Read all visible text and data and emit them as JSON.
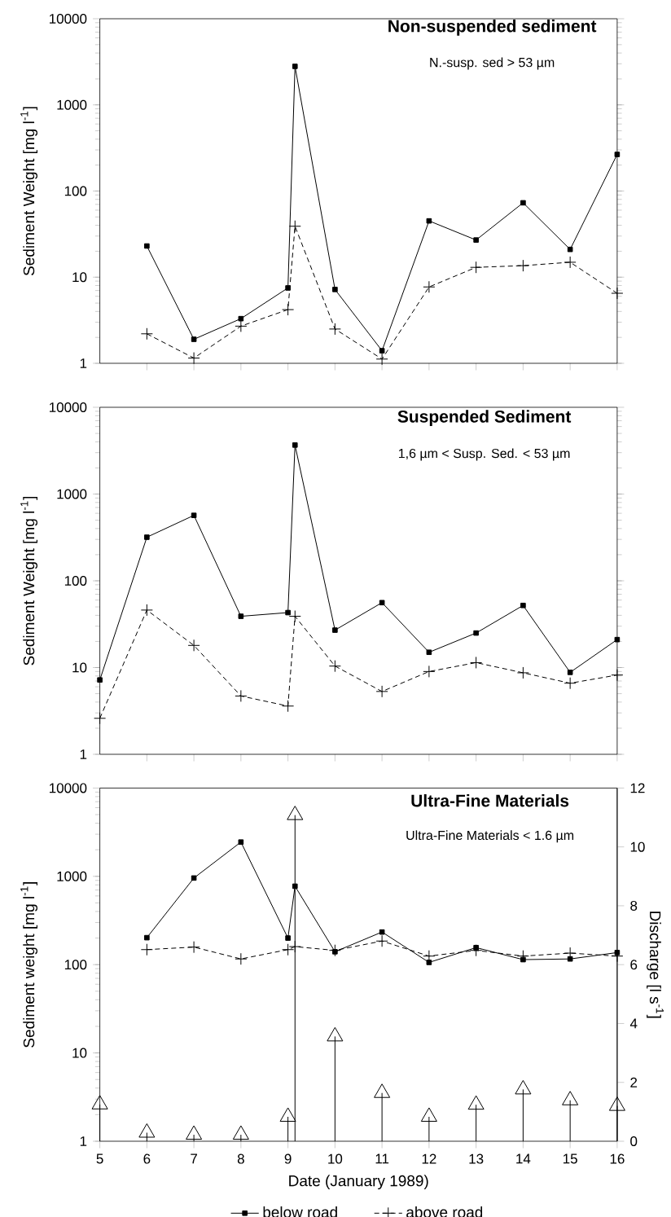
{
  "chart_data": [
    {
      "type": "line",
      "title": "Non-suspended sediment",
      "subtitle": "N.-susp. sed > 53 µm",
      "ylabel": "Sediment Weight [mg l$^{-1}$]",
      "x": [
        6,
        7,
        8,
        9,
        9.15,
        10,
        11,
        12,
        13,
        14,
        15,
        16
      ],
      "xlim": [
        5,
        16
      ],
      "xticks": [
        {
          "value": 6,
          "label": null
        },
        {
          "value": 7,
          "label": null
        },
        {
          "value": 8,
          "label": null
        },
        {
          "value": 9,
          "label": null
        },
        {
          "value": 10,
          "label": null
        },
        {
          "value": 11,
          "label": null
        },
        {
          "value": 12,
          "label": null
        },
        {
          "value": 13,
          "label": null
        },
        {
          "value": 14,
          "label": null
        },
        {
          "value": 15,
          "label": null
        },
        {
          "value": 16,
          "label": null
        }
      ],
      "ylim": [
        1,
        10000
      ],
      "yticks": [
        1,
        10,
        100,
        1000,
        10000
      ],
      "log": "y",
      "tick_labels": "y",
      "series": [
        {
          "color": "#000000",
          "marker": "square",
          "line_style": "solid",
          "values": [
            23,
            1.9,
            3.3,
            7.5,
            2800,
            7.2,
            1.4,
            45,
            27,
            73,
            21,
            266
          ]
        },
        {
          "color": "#000000",
          "marker": "cross",
          "line_style": "dashed",
          "values": [
            2.2,
            1.15,
            2.7,
            4.2,
            39,
            2.5,
            1.12,
            7.7,
            13,
            13.6,
            14.9,
            6.5
          ]
        }
      ]
    },
    {
      "type": "line",
      "title": "Suspended Sediment",
      "subtitle": "1,6 µm < Susp. Sed. < 53 µm",
      "ylabel": "Sediment Weight [mg l$^{-1}$]",
      "x": [
        5,
        6,
        7,
        8,
        9,
        9.15,
        10,
        11,
        12,
        13,
        14,
        15,
        16
      ],
      "xlim": [
        5,
        16
      ],
      "xticks": [
        {
          "value": 6,
          "label": null
        },
        {
          "value": 7,
          "label": null
        },
        {
          "value": 8,
          "label": null
        },
        {
          "value": 9,
          "label": null
        },
        {
          "value": 10,
          "label": null
        },
        {
          "value": 11,
          "label": null
        },
        {
          "value": 12,
          "label": null
        },
        {
          "value": 13,
          "label": null
        },
        {
          "value": 14,
          "label": null
        },
        {
          "value": 15,
          "label": null
        },
        {
          "value": 16,
          "label": null
        }
      ],
      "ylim": [
        1,
        10000
      ],
      "yticks": [
        1,
        10,
        100,
        1000,
        10000
      ],
      "log": "y",
      "tick_labels": "y",
      "series": [
        {
          "color": "#000000",
          "marker": "square",
          "line_style": "solid",
          "values": [
            7.2,
            318,
            568,
            39,
            43,
            3670,
            27,
            56,
            15,
            25,
            52,
            8.8,
            21
          ]
        },
        {
          "color": "#000000",
          "marker": "cross",
          "line_style": "dashed",
          "values": [
            2.6,
            46,
            18,
            4.7,
            3.6,
            39,
            10.4,
            5.3,
            9,
            11.4,
            8.7,
            6.6,
            8.2
          ]
        }
      ]
    },
    {
      "type": "line",
      "title": "Ultra-Fine Materials",
      "subtitle": "Ultra-Fine Materials < 1.6 µm",
      "xlabel": "Date (January 1989)",
      "ylabel": "Sediment weight [mg l$^{-1}$]",
      "y2label": "Discharge [l s$^{-1}$]",
      "x": [
        6,
        7,
        8,
        9,
        9.15,
        10,
        11,
        12,
        13,
        14,
        15,
        16
      ],
      "xlim": [
        5,
        16
      ],
      "xticks": [
        5,
        6,
        7,
        8,
        9,
        10,
        11,
        12,
        13,
        14,
        15,
        16
      ],
      "ylim": [
        1,
        10000
      ],
      "yticks": [
        1,
        10,
        100,
        1000,
        10000
      ],
      "log": "y",
      "y2lim": [
        0,
        12
      ],
      "y2ticks": [
        0,
        2,
        4,
        6,
        8,
        10,
        12
      ],
      "legend": "bottom",
      "series": [
        {
          "name": "below road",
          "color": "#000000",
          "marker": "square",
          "line_style": "solid",
          "values": [
            202,
            957,
            2445,
            200,
            773,
            140,
            234,
            106,
            156,
            114,
            116,
            137
          ]
        },
        {
          "name": "above road",
          "color": "#000000",
          "marker": "cross",
          "line_style": "dashed",
          "values": [
            148,
            158,
            116,
            148,
            160,
            145,
            185,
            125,
            145,
            125,
            135,
            125
          ]
        },
        {
          "type": "lollipop",
          "axis": "y2",
          "color": "#000000",
          "marker": "triangle",
          "x": [
            5,
            6,
            7,
            8,
            9,
            9.15,
            10,
            11,
            12,
            13,
            14,
            15,
            16
          ],
          "values": [
            1.25,
            0.29,
            0.22,
            0.22,
            0.83,
            11.08,
            3.56,
            1.64,
            0.83,
            1.24,
            1.76,
            1.39,
            1.2
          ]
        }
      ]
    }
  ]
}
